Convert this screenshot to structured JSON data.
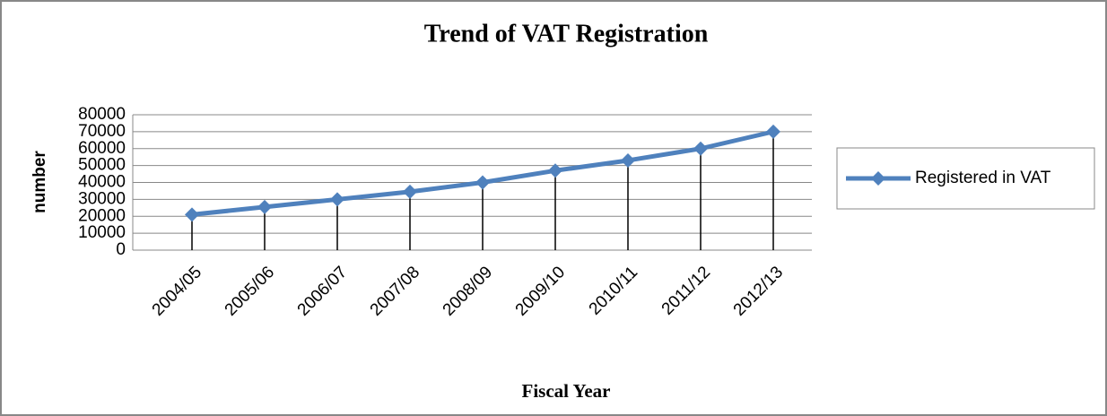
{
  "chart_data": {
    "type": "line",
    "title": "Trend of VAT Registration",
    "x_label": "Fiscal Year",
    "y_label": "number",
    "categories": [
      "2004/05",
      "2005/06",
      "2006/07",
      "2007/08",
      "2008/09",
      "2009/10",
      "2010/11",
      "2011/12",
      "2012/13"
    ],
    "series": [
      {
        "name": "Registered in VAT",
        "color": "#4f81bd",
        "values": [
          21000,
          25500,
          30000,
          34500,
          40000,
          47000,
          53000,
          60000,
          70000
        ]
      }
    ],
    "ylim": [
      0,
      80000
    ],
    "yticks": [
      0,
      10000,
      20000,
      30000,
      40000,
      50000,
      60000,
      70000,
      80000
    ],
    "grid": true,
    "drop_lines": true,
    "legend": "right"
  }
}
